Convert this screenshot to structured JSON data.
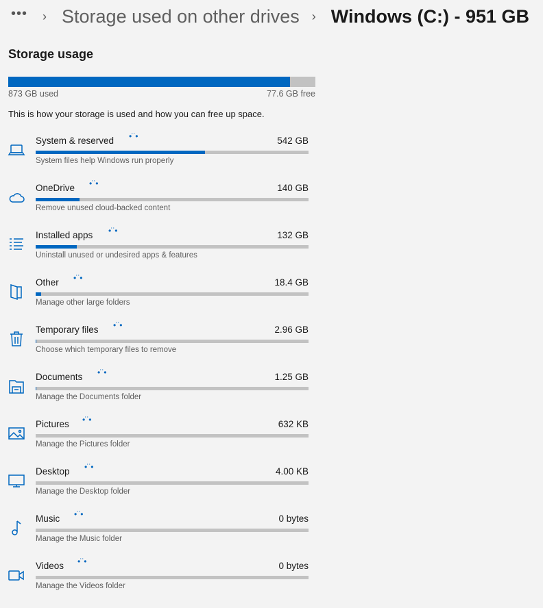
{
  "breadcrumb": {
    "more": "•••",
    "parent": "Storage used on other drives",
    "current": "Windows (C:) - 951 GB"
  },
  "heading": "Storage usage",
  "usage": {
    "used": "873 GB used",
    "free": "77.6 GB free",
    "used_fraction": 0.918
  },
  "description": "This is how your storage is used and how you can free up space.",
  "accent": "#0067c0",
  "categories": [
    {
      "icon": "laptop-icon",
      "name": "System & reserved",
      "size": "542 GB",
      "sub": "System files help Windows run properly",
      "fraction": 0.62
    },
    {
      "icon": "cloud-icon",
      "name": "OneDrive",
      "size": "140 GB",
      "sub": "Remove unused cloud-backed content",
      "fraction": 0.16
    },
    {
      "icon": "apps-list-icon",
      "name": "Installed apps",
      "size": "132 GB",
      "sub": "Uninstall unused or undesired apps & features",
      "fraction": 0.15
    },
    {
      "icon": "folder-icon",
      "name": "Other",
      "size": "18.4 GB",
      "sub": "Manage other large folders",
      "fraction": 0.02
    },
    {
      "icon": "trash-icon",
      "name": "Temporary files",
      "size": "2.96 GB",
      "sub": "Choose which temporary files to remove",
      "fraction": 0.003
    },
    {
      "icon": "documents-icon",
      "name": "Documents",
      "size": "1.25 GB",
      "sub": "Manage the Documents folder",
      "fraction": 0.0015
    },
    {
      "icon": "pictures-icon",
      "name": "Pictures",
      "size": "632 KB",
      "sub": "Manage the Pictures folder",
      "fraction": 0
    },
    {
      "icon": "desktop-icon",
      "name": "Desktop",
      "size": "4.00 KB",
      "sub": "Manage the Desktop folder",
      "fraction": 0
    },
    {
      "icon": "music-icon",
      "name": "Music",
      "size": "0 bytes",
      "sub": "Manage the Music folder",
      "fraction": 0
    },
    {
      "icon": "videos-icon",
      "name": "Videos",
      "size": "0 bytes",
      "sub": "Manage the Videos folder",
      "fraction": 0
    }
  ]
}
